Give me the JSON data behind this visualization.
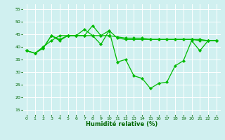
{
  "title": "",
  "xlabel": "Humidité relative (%)",
  "ylabel": "",
  "background_color": "#d0f0f0",
  "grid_color": "#ffffff",
  "line_color": "#00bb00",
  "xlim": [
    -0.5,
    23.5
  ],
  "ylim": [
    13,
    57
  ],
  "yticks": [
    15,
    20,
    25,
    30,
    35,
    40,
    45,
    50,
    55
  ],
  "xticks": [
    0,
    1,
    2,
    3,
    4,
    5,
    6,
    7,
    8,
    9,
    10,
    11,
    12,
    13,
    14,
    15,
    16,
    17,
    18,
    19,
    20,
    21,
    22,
    23
  ],
  "series": [
    [
      38.5,
      37.5,
      39.5,
      44.5,
      42.5,
      44.5,
      44.5,
      47.0,
      44.5,
      41.0,
      46.5,
      34.0,
      35.0,
      28.5,
      27.5,
      23.5,
      25.5,
      26.0,
      32.5,
      34.5,
      42.5,
      38.5,
      42.5,
      42.5
    ],
    [
      38.5,
      37.5,
      39.5,
      44.5,
      43.0,
      44.5,
      44.5,
      44.5,
      44.5,
      44.5,
      44.5,
      44.0,
      43.5,
      43.5,
      43.5,
      43.0,
      43.0,
      43.0,
      43.0,
      43.0,
      43.0,
      43.0,
      42.5,
      42.5
    ],
    [
      38.5,
      37.5,
      40.0,
      42.5,
      44.5,
      44.5,
      44.5,
      44.5,
      48.5,
      44.5,
      46.5,
      43.5,
      43.0,
      43.0,
      43.0,
      43.0,
      43.0,
      43.0,
      43.0,
      43.0,
      43.0,
      42.5,
      42.5,
      42.5
    ]
  ],
  "figsize": [
    3.2,
    2.0
  ],
  "dpi": 100,
  "xlabel_fontsize": 6,
  "tick_fontsize": 4.5,
  "linewidth": 0.9,
  "markersize": 2.2
}
